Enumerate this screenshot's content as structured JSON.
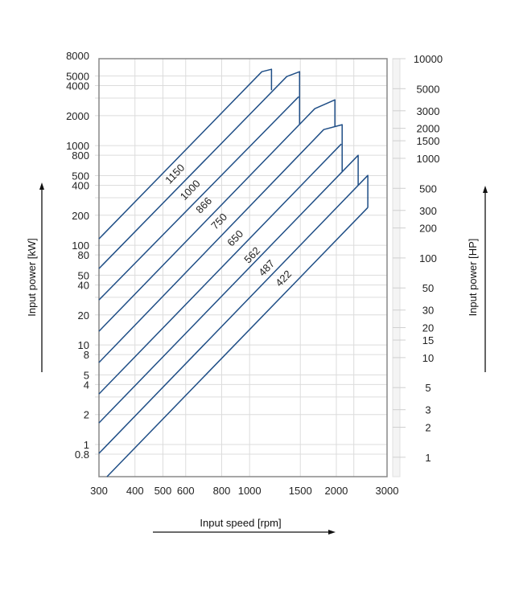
{
  "chart_data": {
    "type": "line",
    "title": "",
    "xlabel": "Input speed [rpm]",
    "ylabel": "Input power [kW]",
    "y2label": "Input power [HP]",
    "xscale": "log",
    "yscale": "log",
    "xlim": [
      300,
      3000
    ],
    "ylim": [
      0.476,
      7457
    ],
    "grid": true,
    "x_ticks": [
      300,
      400,
      500,
      600,
      800,
      1000,
      1500,
      2000,
      3000
    ],
    "x_tick_labels": [
      "300",
      "400",
      "500",
      "600",
      "800",
      "1000",
      "1500",
      "2000",
      "3000"
    ],
    "x_gridlines": [
      300,
      400,
      500,
      600,
      800,
      1000,
      1500,
      2000,
      2300,
      3000
    ],
    "y_ticks": [
      0.8,
      1,
      2,
      4,
      5,
      8,
      10,
      20,
      40,
      50,
      80,
      100,
      200,
      400,
      500,
      800,
      1000,
      2000,
      4000,
      5000,
      8000
    ],
    "y_tick_labels": [
      "0.8",
      "1",
      "2",
      "4",
      "5",
      "8",
      "10",
      "20",
      "40",
      "50",
      "80",
      "100",
      "200",
      "400",
      "500",
      "800",
      "1000",
      "2000",
      "4000",
      "5000",
      "8000"
    ],
    "y_gridlines": [
      0.8,
      1,
      2,
      3,
      4,
      5,
      8,
      10,
      20,
      30,
      40,
      50,
      80,
      100,
      200,
      300,
      400,
      500,
      800,
      1000,
      2000,
      3000,
      4000,
      5000
    ],
    "y2_hp_per_kw": 1.341,
    "y2_ticks": [
      1,
      2,
      3,
      5,
      10,
      15,
      20,
      30,
      50,
      100,
      200,
      300,
      500,
      1000,
      1500,
      2000,
      3000,
      5000,
      10000
    ],
    "y2_tick_labels": [
      "1",
      "2",
      "3",
      "5",
      "10",
      "15",
      "20",
      "30",
      "50",
      "100",
      "200",
      "300",
      "500",
      "1000",
      "1500",
      "2000",
      "3000",
      "5000",
      "10000"
    ],
    "line_color": "#1f4e86",
    "boundary_lines": [
      {
        "points": [
          [
            300,
            116
          ],
          [
            1103,
            5520
          ],
          [
            1191,
            5840
          ],
          [
            1191,
            3600
          ]
        ]
      },
      {
        "points": [
          [
            300,
            58.4
          ],
          [
            1346,
            4940
          ],
          [
            1491,
            5520
          ],
          [
            1491,
            1622
          ]
        ]
      },
      {
        "points": [
          [
            300,
            28.3
          ],
          [
            1481,
            3100
          ]
        ]
      },
      {
        "points": [
          [
            300,
            13.7
          ],
          [
            1684,
            2350
          ],
          [
            1977,
            2880
          ],
          [
            1977,
            1563
          ]
        ]
      },
      {
        "points": [
          [
            300,
            6.65
          ],
          [
            1808,
            1450
          ],
          [
            2095,
            1622
          ],
          [
            2095,
            552
          ]
        ]
      },
      {
        "points": [
          [
            300,
            3.22
          ],
          [
            2081,
            1038
          ]
        ]
      },
      {
        "points": [
          [
            300,
            1.65
          ],
          [
            2381,
            800
          ],
          [
            2381,
            403
          ]
        ]
      },
      {
        "points": [
          [
            300,
            0.815
          ],
          [
            2572,
            503
          ],
          [
            2572,
            239
          ]
        ]
      },
      {
        "points": [
          [
            320,
            0.476
          ],
          [
            2572,
            239
          ]
        ]
      }
    ],
    "series_labels": [
      "1150",
      "1000",
      "866",
      "750",
      "650",
      "562",
      "487",
      "422"
    ]
  }
}
